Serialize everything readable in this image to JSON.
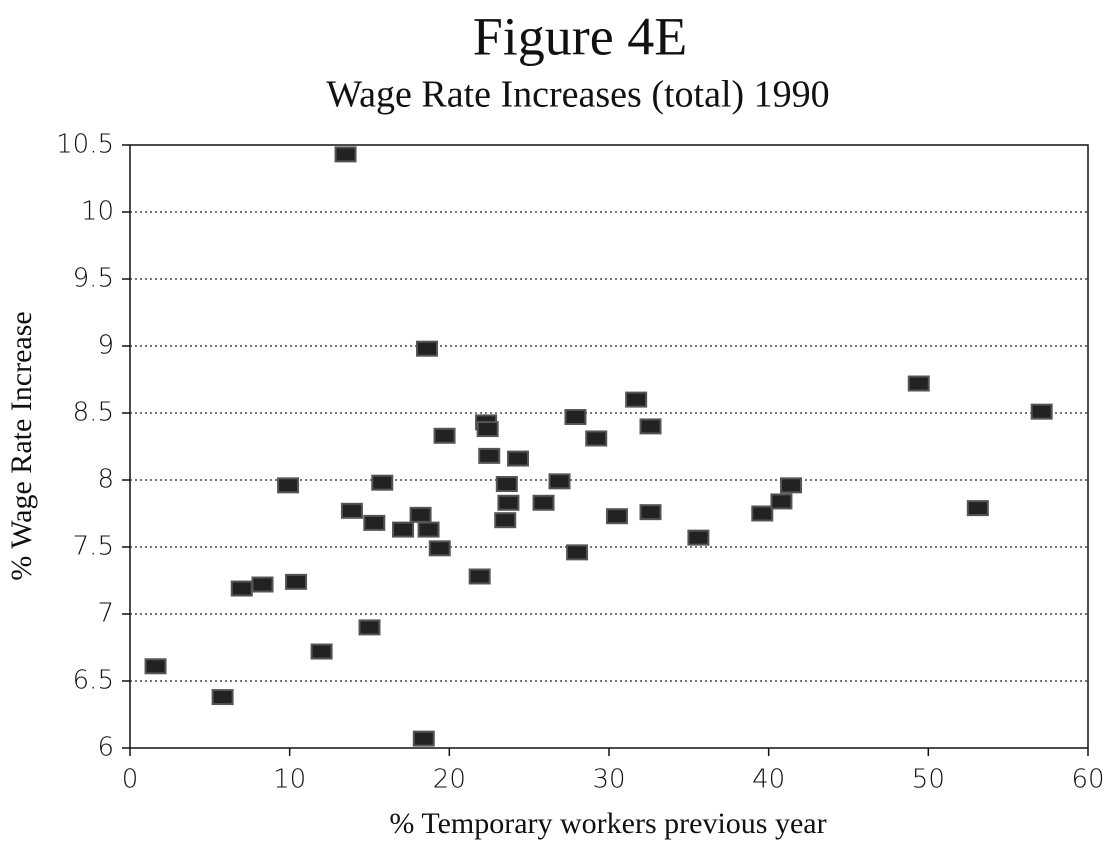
{
  "chart_data": {
    "type": "scatter",
    "title": "Figure 4E",
    "subtitle": "Wage Rate Increases (total) 1990",
    "x_label": "% Temporary workers previous year",
    "y_label": "% Wage Rate Increase",
    "xlim": [
      0,
      60
    ],
    "xticks": [
      0,
      10,
      20,
      30,
      40,
      50,
      60
    ],
    "ylim": [
      6,
      10.5
    ],
    "yticks": [
      6,
      6.5,
      7,
      7.5,
      8,
      8.5,
      9,
      9.5,
      10,
      10.5
    ],
    "grid": true,
    "color": "#222222",
    "x": [
      13.5,
      18.6,
      1.6,
      5.8,
      7.0,
      8.3,
      9.9,
      10.4,
      12.0,
      13.9,
      15.0,
      15.3,
      15.8,
      17.1,
      18.2,
      18.7,
      18.4,
      19.4,
      19.7,
      21.9,
      22.3,
      22.4,
      22.5,
      24.3,
      23.6,
      23.7,
      23.5,
      25.9,
      26.9,
      27.9,
      28.0,
      29.2,
      30.5,
      31.7,
      32.6,
      32.6,
      35.6,
      39.6,
      40.8,
      41.4,
      49.4,
      53.1,
      57.1
    ],
    "values": [
      10.43,
      8.98,
      6.61,
      6.38,
      7.19,
      7.22,
      7.96,
      7.24,
      6.72,
      7.77,
      6.9,
      7.68,
      7.98,
      7.63,
      7.74,
      7.63,
      6.07,
      7.49,
      8.33,
      7.28,
      8.43,
      8.38,
      8.18,
      8.16,
      7.97,
      7.83,
      7.7,
      7.83,
      7.99,
      8.47,
      7.46,
      8.31,
      7.73,
      8.6,
      8.4,
      7.76,
      7.57,
      7.75,
      7.84,
      7.96,
      8.72,
      7.79,
      8.51
    ]
  }
}
